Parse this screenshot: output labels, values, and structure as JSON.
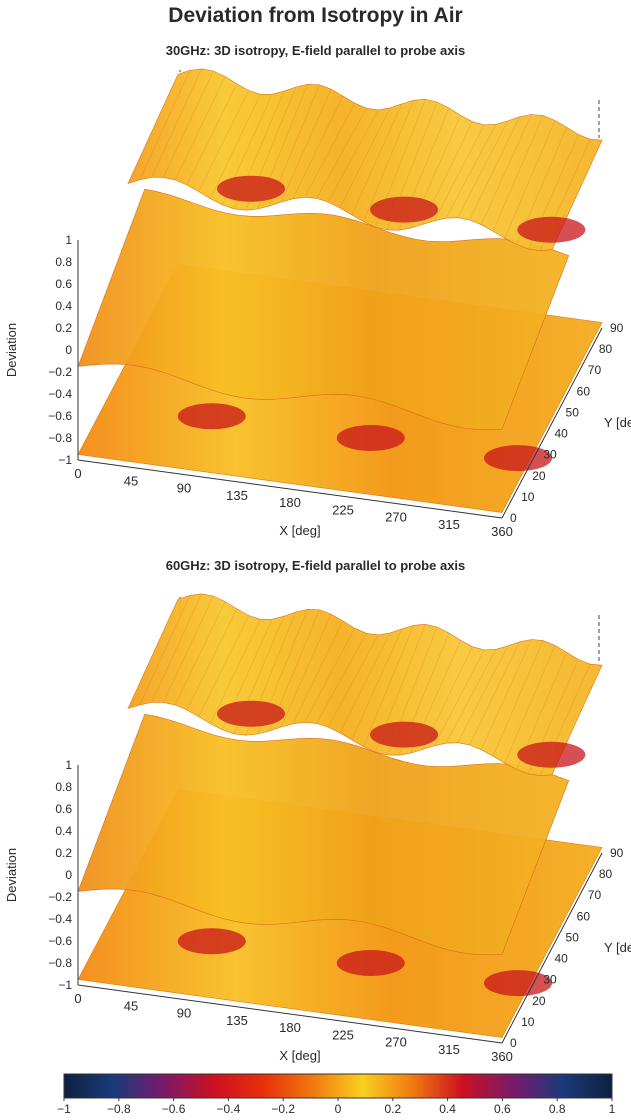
{
  "page": {
    "title": "Deviation from Isotropy in Air"
  },
  "chart_data": [
    {
      "type": "surface",
      "subtitle": "30GHz: 3D isotropy, E-field parallel to probe axis",
      "xlabel": "X [deg]",
      "ylabel": "Y [deg]",
      "zlabel": "Deviation",
      "x_ticks": [
        "0",
        "45",
        "90",
        "135",
        "180",
        "225",
        "270",
        "315",
        "360"
      ],
      "y_ticks": [
        "0",
        "10",
        "20",
        "30",
        "40",
        "50",
        "60",
        "70",
        "80",
        "90"
      ],
      "z_ticks": [
        "-1",
        "-0.8",
        "-0.6",
        "-0.4",
        "-0.2",
        "0",
        "0.2",
        "0.4",
        "0.6",
        "0.8",
        "1"
      ],
      "z_tick_labels": [
        "−1",
        "−0.8",
        "−0.6",
        "−0.4",
        "−0.2",
        "0",
        "0.2",
        "0.4",
        "0.6",
        "0.8",
        "1"
      ],
      "xlim": [
        0,
        360
      ],
      "ylim": [
        0,
        90
      ],
      "zlim": [
        -1,
        1
      ]
    },
    {
      "type": "surface",
      "subtitle": "60GHz: 3D isotropy, E-field parallel to probe axis",
      "xlabel": "X [deg]",
      "ylabel": "Y [deg]",
      "zlabel": "Deviation",
      "x_ticks": [
        "0",
        "45",
        "90",
        "135",
        "180",
        "225",
        "270",
        "315",
        "360"
      ],
      "y_ticks": [
        "0",
        "10",
        "20",
        "30",
        "40",
        "50",
        "60",
        "70",
        "80",
        "90"
      ],
      "z_ticks": [
        "-1",
        "-0.8",
        "-0.6",
        "-0.4",
        "-0.2",
        "0",
        "0.2",
        "0.4",
        "0.6",
        "0.8",
        "1"
      ],
      "z_tick_labels": [
        "−1",
        "−0.8",
        "−0.6",
        "−0.4",
        "−0.2",
        "0",
        "0.2",
        "0.4",
        "0.6",
        "0.8",
        "1"
      ],
      "xlim": [
        0,
        360
      ],
      "ylim": [
        0,
        90
      ],
      "zlim": [
        -1,
        1
      ]
    }
  ],
  "colorbar": {
    "ticks": [
      "−1",
      "−0.8",
      "−0.6",
      "−0.4",
      "−0.2",
      "0",
      "0.2",
      "0.4",
      "0.6",
      "0.8",
      "1"
    ],
    "range": [
      -1,
      1
    ],
    "colors": [
      "#0d2140",
      "#1a3a7a",
      "#7a1a6a",
      "#cc1020",
      "#e8300c",
      "#f07a10",
      "#f8d020",
      "#f07a10",
      "#cc1020",
      "#7a1a6a",
      "#1a3a7a",
      "#0d2140"
    ]
  }
}
